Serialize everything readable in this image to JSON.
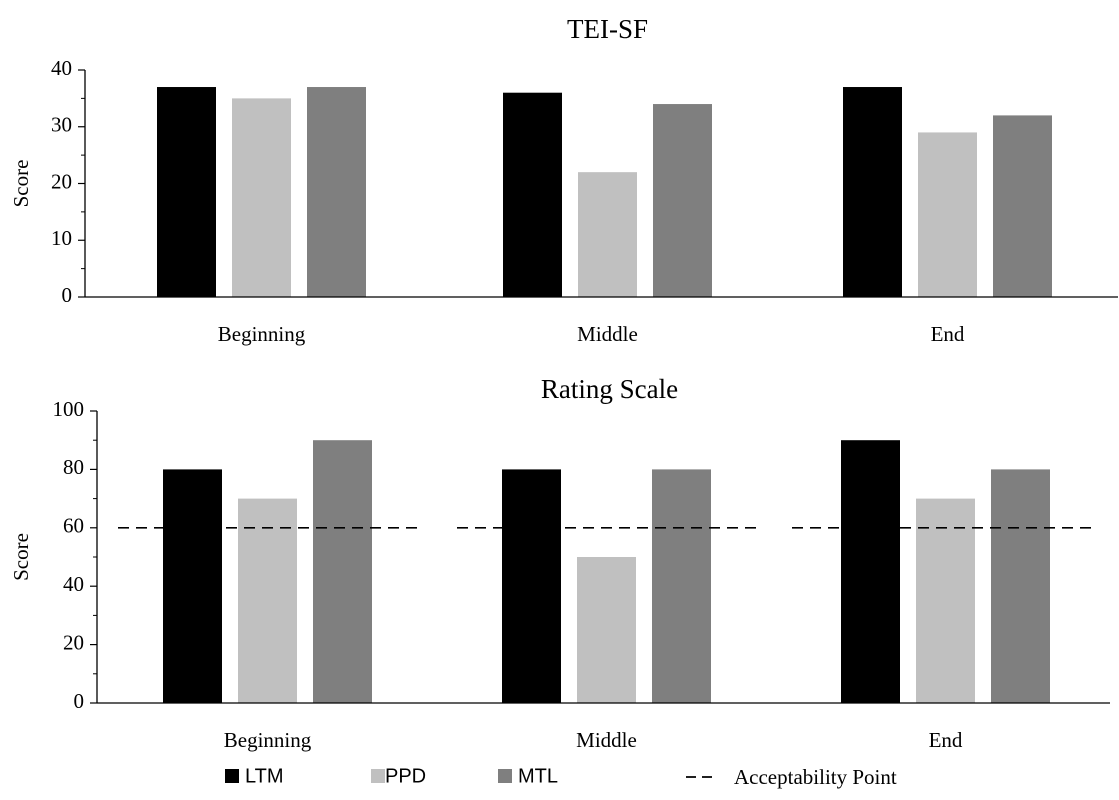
{
  "chart_data": [
    {
      "type": "bar",
      "title": "TEI-SF",
      "ylabel": "Score",
      "ylim": [
        0,
        40
      ],
      "yticks": [
        0,
        10,
        20,
        30,
        40
      ],
      "categories": [
        "Beginning",
        "Middle",
        "End"
      ],
      "series": [
        {
          "name": "LTM",
          "color": "#000000",
          "values": [
            37,
            36,
            37
          ]
        },
        {
          "name": "PPD",
          "color": "#c0c0c0",
          "values": [
            35,
            22,
            29
          ]
        },
        {
          "name": "MTL",
          "color": "#7f7f7f",
          "values": [
            37,
            34,
            32
          ]
        }
      ]
    },
    {
      "type": "bar",
      "title": "Rating Scale",
      "ylabel": "Score",
      "ylim": [
        0,
        100
      ],
      "yticks": [
        0,
        20,
        40,
        60,
        80,
        100
      ],
      "categories": [
        "Beginning",
        "Middle",
        "End"
      ],
      "series": [
        {
          "name": "LTM",
          "color": "#000000",
          "values": [
            80,
            80,
            90
          ]
        },
        {
          "name": "PPD",
          "color": "#c0c0c0",
          "values": [
            70,
            50,
            70
          ]
        },
        {
          "name": "MTL",
          "color": "#7f7f7f",
          "values": [
            90,
            80,
            80
          ]
        }
      ],
      "reference_line": {
        "name": "Acceptability Point",
        "value": 60,
        "style": "dashed"
      }
    }
  ],
  "legend": {
    "placement": "bottom",
    "items": [
      {
        "label": "LTM",
        "color": "#000000",
        "kind": "swatch"
      },
      {
        "label": "PPD",
        "color": "#c0c0c0",
        "kind": "swatch"
      },
      {
        "label": "MTL",
        "color": "#7f7f7f",
        "kind": "swatch"
      },
      {
        "label": "Acceptability Point",
        "color": "#000000",
        "kind": "dashed-line"
      }
    ]
  }
}
